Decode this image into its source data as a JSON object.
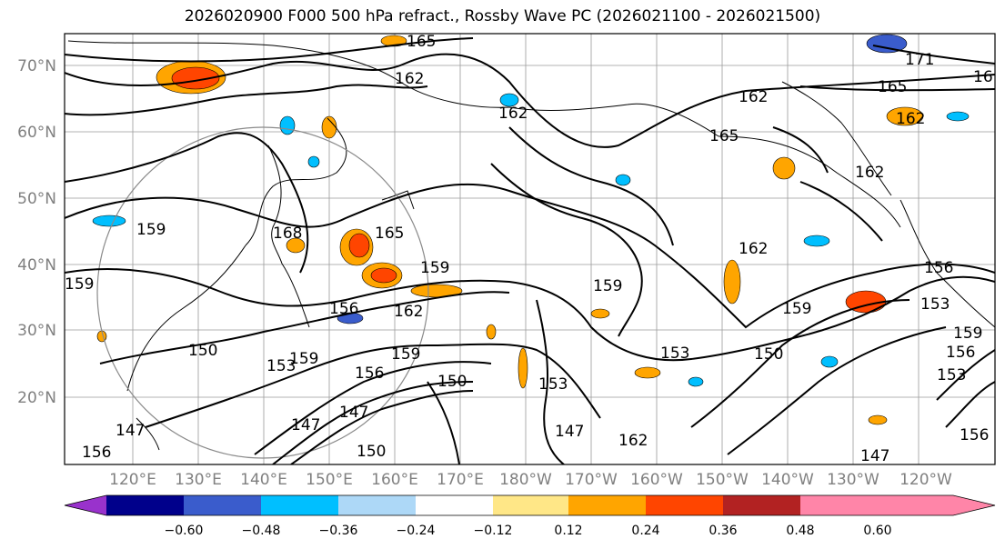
{
  "title": "2026020900 F000 500 hPa refract., Rossby Wave PC (2026021100 - 2026021500)",
  "lat_labels": [
    "70°N",
    "60°N",
    "50°N",
    "40°N",
    "30°N",
    "20°N"
  ],
  "lon_labels": [
    "120°E",
    "130°E",
    "140°E",
    "150°E",
    "160°E",
    "170°E",
    "180°W",
    "170°W",
    "160°W",
    "150°W",
    "140°W",
    "130°W",
    "120°W"
  ],
  "contour_labels": [
    "165",
    "162",
    "162",
    "162",
    "165",
    "171",
    "16",
    "162",
    "159",
    "168",
    "165",
    "159",
    "159",
    "162",
    "156",
    "150",
    "150",
    "153",
    "156",
    "159",
    "159",
    "147",
    "150",
    "147",
    "156",
    "153",
    "153",
    "150",
    "159",
    "162",
    "156",
    "153",
    "147",
    "156",
    "156",
    "159",
    "147",
    "153",
    "159",
    "147",
    "162",
    "165",
    "162"
  ],
  "colorbar": {
    "ticks": [
      "−0.60",
      "−0.48",
      "−0.36",
      "−0.24",
      "−0.12",
      "0.12",
      "0.24",
      "0.36",
      "0.48",
      "0.60"
    ],
    "colors": [
      "#9932cc",
      "#00008b",
      "#3a5ccc",
      "#00bfff",
      "#add8f7",
      "#ffffff",
      "#ffe787",
      "#ffa500",
      "#ff4500",
      "#b22222",
      "#ff85a8"
    ]
  }
}
